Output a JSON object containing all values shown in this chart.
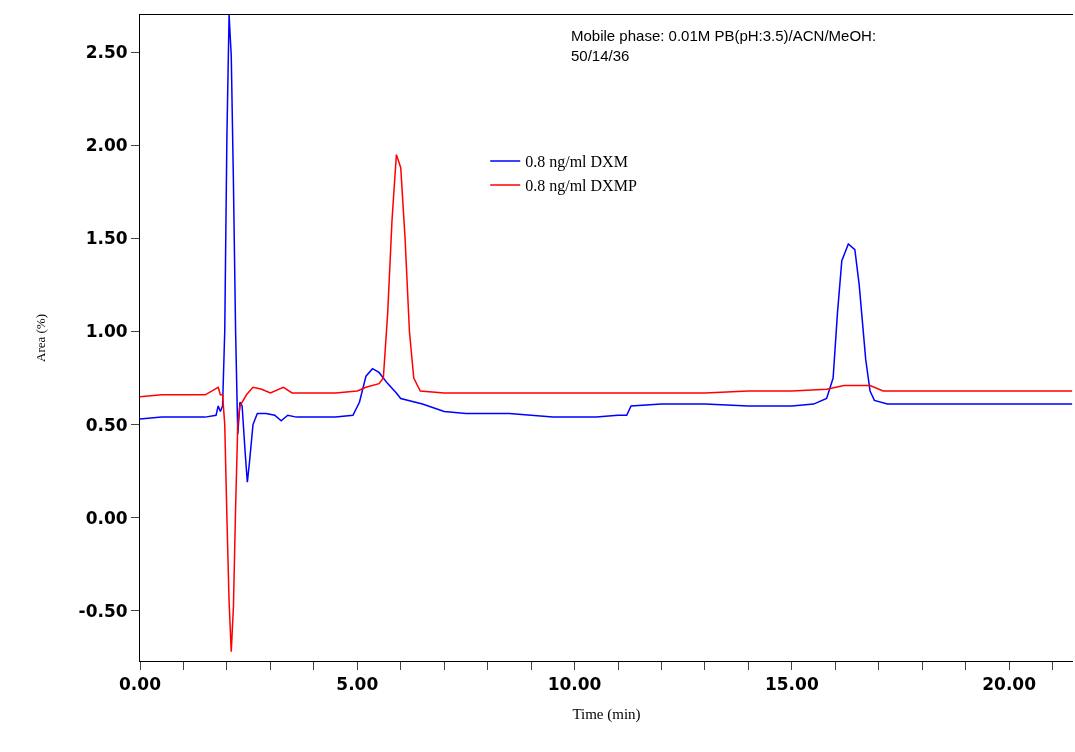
{
  "chart_data": {
    "type": "line",
    "xlabel": "Time (min)",
    "ylabel": "Area (%)",
    "annotations": [
      "Mobile phase: 0.01M PB(pH:3.5)/ACN/MeOH:\n50/14/36"
    ],
    "xlim": [
      0,
      21.47
    ],
    "ylim": [
      -0.77,
      2.7
    ],
    "xticks": [
      {
        "value": 0,
        "label": "0.00"
      },
      {
        "value": 1,
        "label": null
      },
      {
        "value": 2,
        "label": null
      },
      {
        "value": 3,
        "label": null
      },
      {
        "value": 4,
        "label": null
      },
      {
        "value": 5,
        "label": "5.00"
      },
      {
        "value": 6,
        "label": null
      },
      {
        "value": 7,
        "label": null
      },
      {
        "value": 8,
        "label": null
      },
      {
        "value": 9,
        "label": null
      },
      {
        "value": 10,
        "label": "10.00"
      },
      {
        "value": 11,
        "label": null
      },
      {
        "value": 12,
        "label": null
      },
      {
        "value": 13,
        "label": null
      },
      {
        "value": 14,
        "label": null
      },
      {
        "value": 15,
        "label": "15.00"
      },
      {
        "value": 16,
        "label": null
      },
      {
        "value": 17,
        "label": null
      },
      {
        "value": 18,
        "label": null
      },
      {
        "value": 19,
        "label": null
      },
      {
        "value": 20,
        "label": "20.00"
      },
      {
        "value": 21,
        "label": null
      }
    ],
    "yticks": [
      {
        "value": -0.5,
        "label": "-0.50"
      },
      {
        "value": 0,
        "label": "0.00"
      },
      {
        "value": 0.5,
        "label": "0.50"
      },
      {
        "value": 1,
        "label": "1.00"
      },
      {
        "value": 1.5,
        "label": "1.50"
      },
      {
        "value": 2,
        "label": "2.00"
      },
      {
        "value": 2.5,
        "label": "2.50"
      }
    ],
    "legend": "top",
    "marker": "none",
    "line_style": "solid",
    "series": [
      {
        "name": "0.8 ng/ml DXM",
        "color": "#0000ff",
        "x": [
          0,
          0.5,
          1.0,
          1.5,
          1.75,
          1.8,
          1.85,
          1.9,
          1.95,
          2.0,
          2.05,
          2.1,
          2.15,
          2.2,
          2.25,
          2.3,
          2.35,
          2.42,
          2.47,
          2.52,
          2.6,
          2.7,
          2.9,
          3.1,
          3.25,
          3.4,
          3.6,
          4.0,
          4.5,
          4.9,
          5.05,
          5.2,
          5.35,
          5.5,
          5.7,
          5.9,
          6.0,
          6.5,
          7.0,
          7.5,
          8.0,
          8.5,
          9.0,
          9.5,
          10.0,
          10.5,
          11.0,
          11.2,
          11.3,
          12,
          13,
          14,
          15,
          15.5,
          15.8,
          15.95,
          16.05,
          16.15,
          16.3,
          16.45,
          16.55,
          16.7,
          16.8,
          16.9,
          17.2,
          18,
          19,
          20,
          21,
          21.45
        ],
        "values": [
          0.53,
          0.54,
          0.54,
          0.54,
          0.55,
          0.6,
          0.57,
          0.6,
          1.0,
          2.05,
          2.7,
          2.48,
          1.8,
          1.0,
          0.45,
          0.62,
          0.6,
          0.35,
          0.19,
          0.3,
          0.5,
          0.56,
          0.56,
          0.55,
          0.52,
          0.55,
          0.54,
          0.54,
          0.54,
          0.55,
          0.62,
          0.76,
          0.8,
          0.78,
          0.72,
          0.67,
          0.64,
          0.61,
          0.57,
          0.56,
          0.56,
          0.56,
          0.55,
          0.54,
          0.54,
          0.54,
          0.55,
          0.55,
          0.6,
          0.61,
          0.61,
          0.6,
          0.6,
          0.61,
          0.64,
          0.75,
          1.1,
          1.38,
          1.47,
          1.44,
          1.25,
          0.85,
          0.68,
          0.63,
          0.61,
          0.61,
          0.61,
          0.61,
          0.61,
          0.61
        ]
      },
      {
        "name": "0.8 ng/ml DXMP",
        "color": "#ff0000",
        "x": [
          0,
          0.5,
          1.0,
          1.5,
          1.8,
          1.85,
          1.9,
          1.95,
          2.0,
          2.05,
          2.1,
          2.15,
          2.2,
          2.25,
          2.3,
          2.45,
          2.6,
          2.8,
          3.0,
          3.3,
          3.5,
          4,
          4.5,
          5.0,
          5.2,
          5.5,
          5.6,
          5.7,
          5.8,
          5.9,
          6.0,
          6.1,
          6.2,
          6.3,
          6.45,
          7,
          8,
          9,
          10,
          11,
          12,
          13,
          14,
          15,
          15.8,
          16.2,
          16.8,
          17.1,
          18,
          19,
          20,
          21,
          21.45
        ],
        "values": [
          0.65,
          0.66,
          0.66,
          0.66,
          0.7,
          0.66,
          0.66,
          0.5,
          0.0,
          -0.45,
          -0.72,
          -0.48,
          0.05,
          0.5,
          0.6,
          0.66,
          0.7,
          0.69,
          0.67,
          0.7,
          0.67,
          0.67,
          0.67,
          0.68,
          0.7,
          0.72,
          0.75,
          1.1,
          1.6,
          1.95,
          1.88,
          1.5,
          1.0,
          0.75,
          0.68,
          0.67,
          0.67,
          0.67,
          0.67,
          0.67,
          0.67,
          0.67,
          0.68,
          0.68,
          0.69,
          0.71,
          0.71,
          0.68,
          0.68,
          0.68,
          0.68,
          0.68,
          0.68
        ]
      }
    ]
  }
}
